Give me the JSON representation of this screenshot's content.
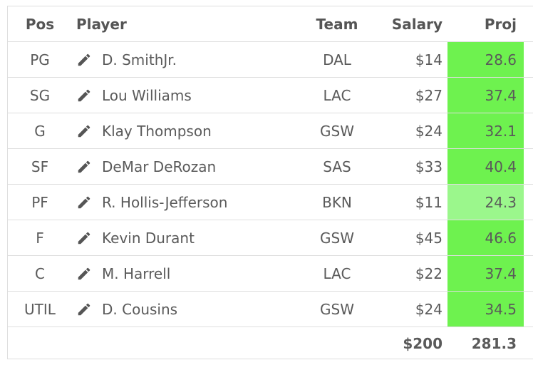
{
  "headers": {
    "pos": "Pos",
    "player": "Player",
    "team": "Team",
    "salary": "Salary",
    "proj": "Proj"
  },
  "rows": [
    {
      "pos": "PG",
      "player": "D. SmithJr.",
      "team": "DAL",
      "salary": "$14",
      "proj": "28.6",
      "highlight": "strong"
    },
    {
      "pos": "SG",
      "player": "Lou Williams",
      "team": "LAC",
      "salary": "$27",
      "proj": "37.4",
      "highlight": "strong"
    },
    {
      "pos": "G",
      "player": "Klay Thompson",
      "team": "GSW",
      "salary": "$24",
      "proj": "32.1",
      "highlight": "strong"
    },
    {
      "pos": "SF",
      "player": "DeMar DeRozan",
      "team": "SAS",
      "salary": "$33",
      "proj": "40.4",
      "highlight": "strong"
    },
    {
      "pos": "PF",
      "player": "R. Hollis-Jefferson",
      "team": "BKN",
      "salary": "$11",
      "proj": "24.3",
      "highlight": "light"
    },
    {
      "pos": "F",
      "player": "Kevin Durant",
      "team": "GSW",
      "salary": "$45",
      "proj": "46.6",
      "highlight": "strong"
    },
    {
      "pos": "C",
      "player": "M. Harrell",
      "team": "LAC",
      "salary": "$22",
      "proj": "37.4",
      "highlight": "strong"
    },
    {
      "pos": "UTIL",
      "player": "D. Cousins",
      "team": "GSW",
      "salary": "$24",
      "proj": "34.5",
      "highlight": "strong"
    }
  ],
  "totals": {
    "salary": "$200",
    "proj": "281.3"
  },
  "colors": {
    "strong": "#6ef24f",
    "light": "#9bf78c"
  },
  "icons": {
    "edit": "pencil-icon"
  }
}
